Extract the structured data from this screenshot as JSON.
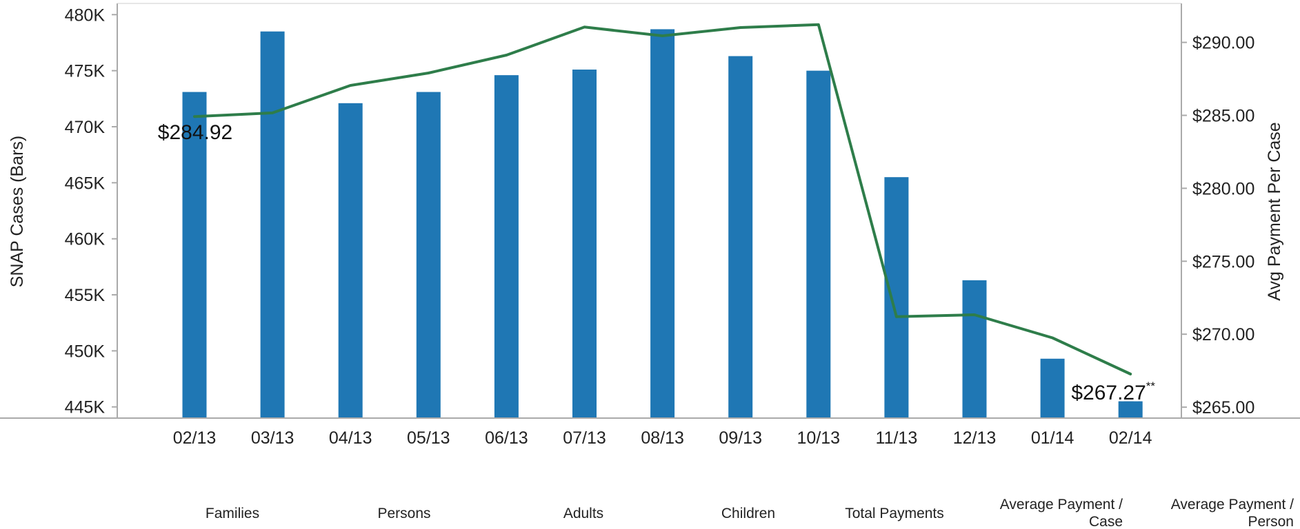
{
  "chart_data": {
    "type": "bar",
    "categories": [
      "02/13",
      "03/13",
      "04/13",
      "05/13",
      "06/13",
      "07/13",
      "08/13",
      "09/13",
      "10/13",
      "11/13",
      "12/13",
      "01/14",
      "02/14"
    ],
    "series": [
      {
        "axis": "left",
        "type": "bar",
        "color": "#1f77b4",
        "values": [
          473100,
          478500,
          472100,
          473100,
          474600,
          475100,
          478700,
          476300,
          475000,
          465500,
          456300,
          449300,
          445500
        ]
      },
      {
        "axis": "right",
        "type": "line",
        "color": "#2e7d4a",
        "values": [
          284.92,
          285.17,
          287.05,
          287.9,
          289.13,
          291.05,
          290.45,
          291.02,
          291.22,
          271.2,
          271.33,
          269.75,
          267.27
        ]
      }
    ],
    "ylabel_left": "SNAP Cases (Bars)",
    "ylabel_right": "Avg Payment Per Case",
    "ylim_left": [
      444000,
      481000
    ],
    "ylim_right": [
      264.25,
      292.67
    ],
    "yticks_left": [
      {
        "value": 445000,
        "label": "445K"
      },
      {
        "value": 450000,
        "label": "450K"
      },
      {
        "value": 455000,
        "label": "455K"
      },
      {
        "value": 460000,
        "label": "460K"
      },
      {
        "value": 465000,
        "label": "465K"
      },
      {
        "value": 470000,
        "label": "470K"
      },
      {
        "value": 475000,
        "label": "475K"
      },
      {
        "value": 480000,
        "label": "480K"
      }
    ],
    "yticks_right": [
      {
        "value": 265,
        "label": "$265.00"
      },
      {
        "value": 270,
        "label": "$270.00"
      },
      {
        "value": 275,
        "label": "$275.00"
      },
      {
        "value": 280,
        "label": "$280.00"
      },
      {
        "value": 285,
        "label": "$285.00"
      },
      {
        "value": 290,
        "label": "$290.00"
      }
    ],
    "annotations": [
      {
        "category_index": 0,
        "text": "$284.92",
        "superscript": ""
      },
      {
        "category_index": 12,
        "text": "$267.27",
        "superscript": "**"
      }
    ],
    "grid": false,
    "legend": "none"
  },
  "footer_labels": [
    {
      "lines": [
        "Families"
      ]
    },
    {
      "lines": [
        "Persons"
      ]
    },
    {
      "lines": [
        "Adults"
      ]
    },
    {
      "lines": [
        "Children"
      ]
    },
    {
      "lines": [
        "Total Payments"
      ]
    },
    {
      "lines": [
        "Average Payment /",
        "Case"
      ]
    },
    {
      "lines": [
        "Average Payment /",
        "Person"
      ]
    }
  ]
}
